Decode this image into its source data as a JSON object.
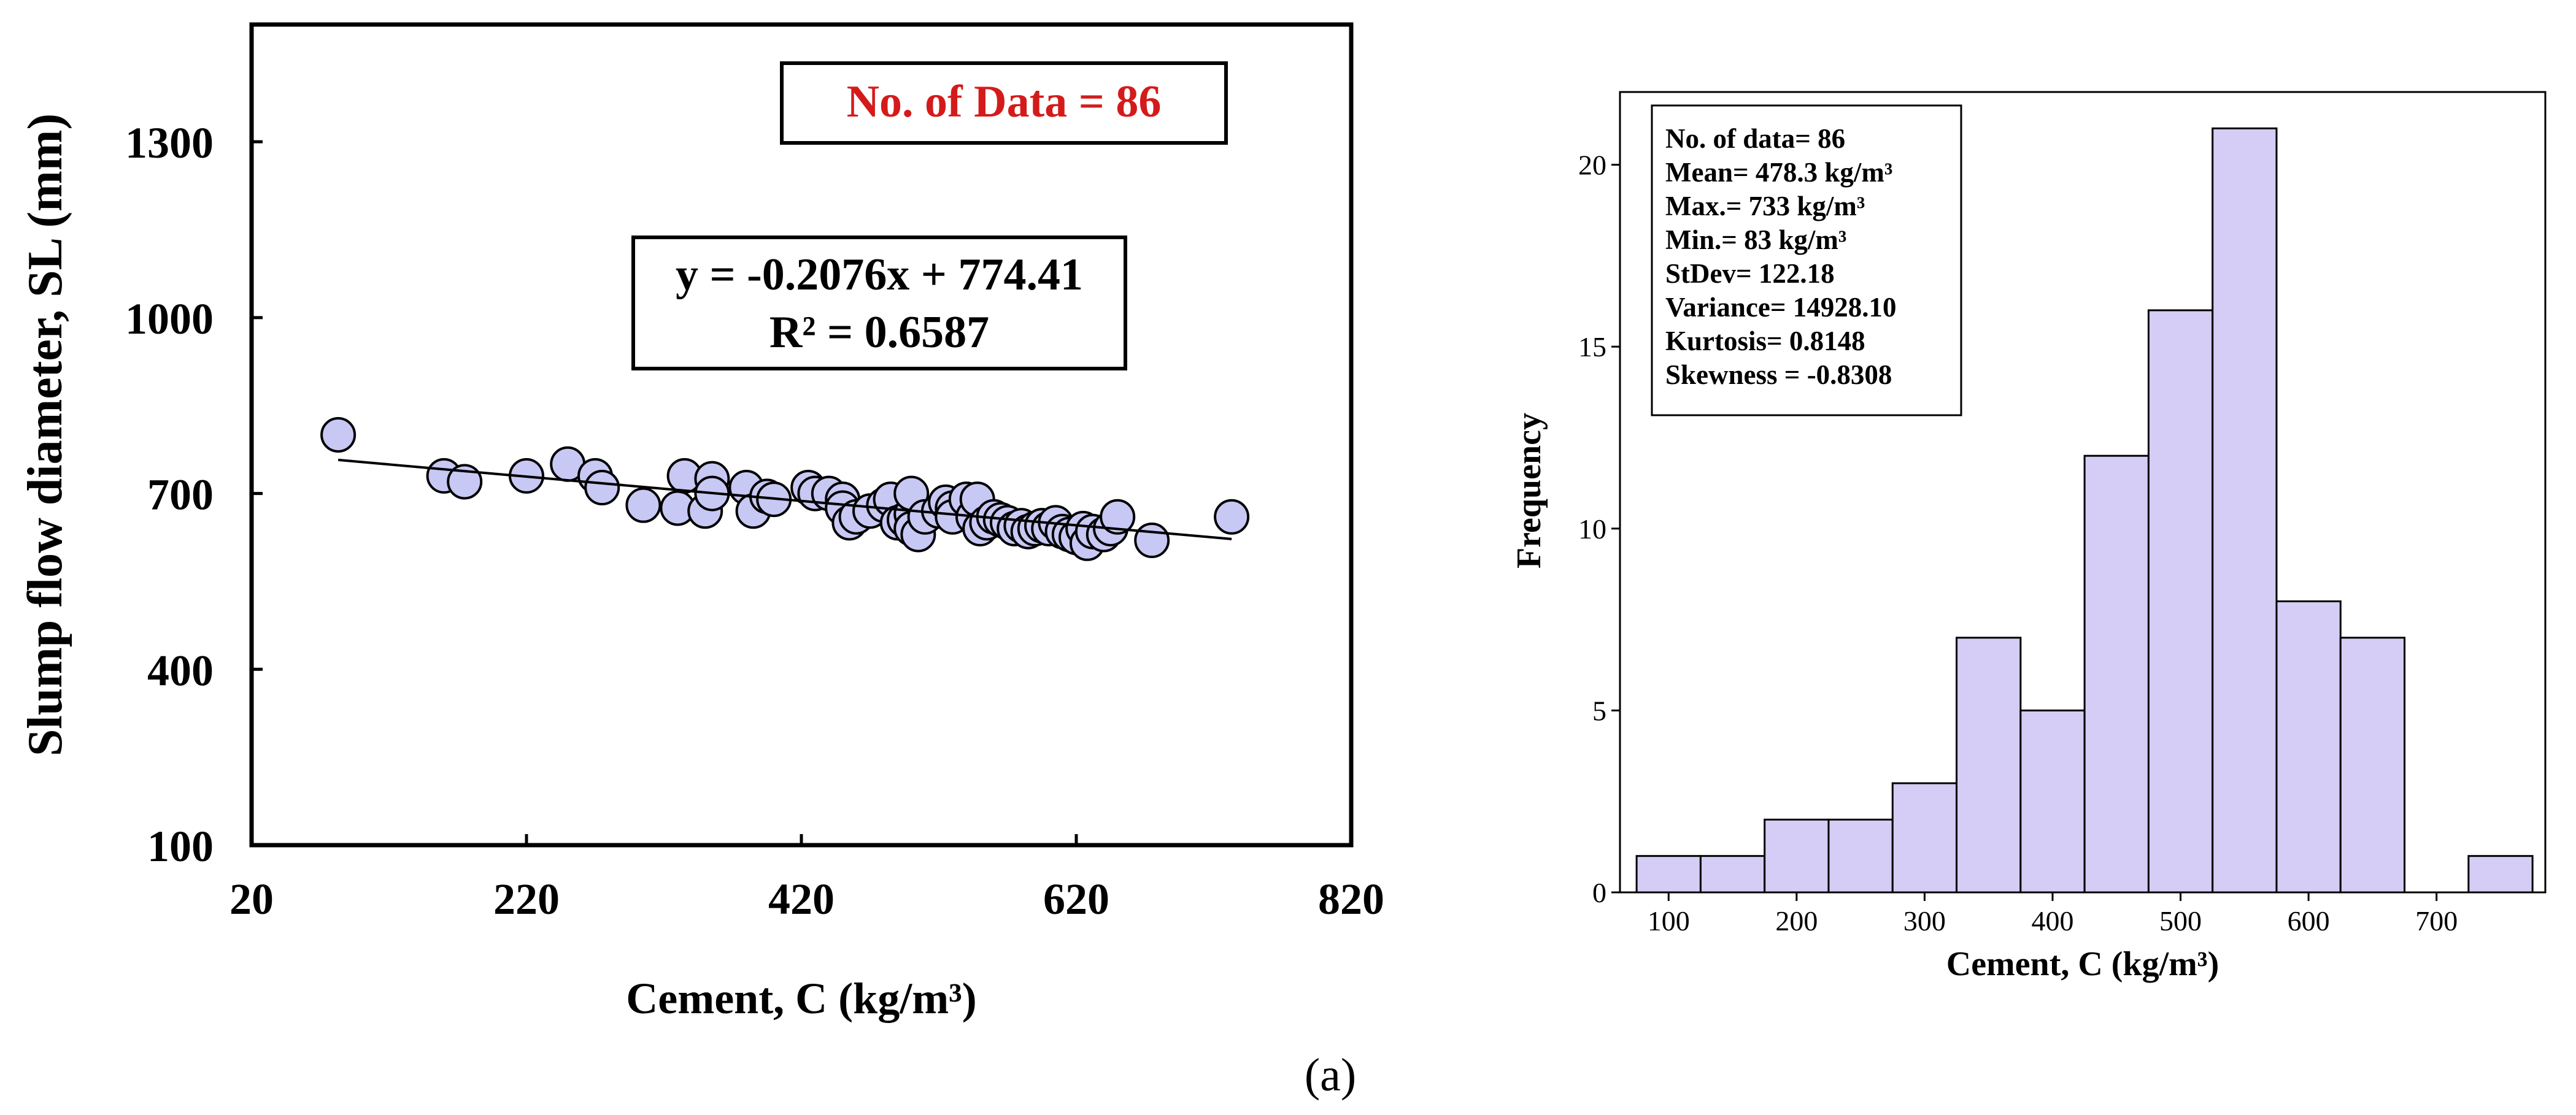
{
  "colors": {
    "marker_fill": "#c8c8f5",
    "bar_fill": "#d5cdf5",
    "annotation_red": "#d41b1b",
    "ink": "#000000"
  },
  "figure_label": "(a)",
  "chart_data": [
    {
      "type": "scatter",
      "title": "",
      "xlabel": "Cement, C (kg/m³)",
      "ylabel": "Slump flow diameter, SL (mm)",
      "xlim": [
        20,
        820
      ],
      "ylim": [
        100,
        1500
      ],
      "xticks": [
        20,
        220,
        420,
        620,
        820
      ],
      "xtick_labels": [
        "20",
        "220",
        "420",
        "620",
        "820"
      ],
      "yticks": [
        100,
        400,
        700,
        1000,
        1300
      ],
      "ytick_labels": [
        "100",
        "400",
        "700",
        "1000",
        "1300"
      ],
      "grid": false,
      "badge": "No. of Data = 86",
      "equation": "y = -0.2076x + 774.41",
      "r_squared": "R² = 0.6587",
      "trendline": {
        "slope": -0.2076,
        "intercept": 774.41,
        "x_range": [
          83,
          733
        ]
      },
      "points": [
        [
          83,
          800
        ],
        [
          160,
          730
        ],
        [
          175,
          720
        ],
        [
          220,
          730
        ],
        [
          250,
          750
        ],
        [
          270,
          730
        ],
        [
          275,
          710
        ],
        [
          305,
          680
        ],
        [
          330,
          675
        ],
        [
          335,
          730
        ],
        [
          350,
          670
        ],
        [
          355,
          725
        ],
        [
          355,
          700
        ],
        [
          380,
          710
        ],
        [
          385,
          670
        ],
        [
          395,
          695
        ],
        [
          400,
          690
        ],
        [
          425,
          710
        ],
        [
          430,
          700
        ],
        [
          440,
          700
        ],
        [
          450,
          690
        ],
        [
          450,
          675
        ],
        [
          455,
          650
        ],
        [
          460,
          660
        ],
        [
          470,
          670
        ],
        [
          480,
          680
        ],
        [
          485,
          690
        ],
        [
          490,
          650
        ],
        [
          495,
          655
        ],
        [
          500,
          665
        ],
        [
          500,
          640
        ],
        [
          500,
          700
        ],
        [
          505,
          630
        ],
        [
          510,
          660
        ],
        [
          520,
          670
        ],
        [
          525,
          685
        ],
        [
          530,
          675
        ],
        [
          530,
          660
        ],
        [
          540,
          690
        ],
        [
          545,
          660
        ],
        [
          548,
          690
        ],
        [
          550,
          640
        ],
        [
          555,
          650
        ],
        [
          560,
          660
        ],
        [
          565,
          655
        ],
        [
          570,
          650
        ],
        [
          575,
          640
        ],
        [
          580,
          645
        ],
        [
          585,
          635
        ],
        [
          590,
          640
        ],
        [
          595,
          645
        ],
        [
          600,
          640
        ],
        [
          605,
          650
        ],
        [
          610,
          635
        ],
        [
          615,
          630
        ],
        [
          620,
          625
        ],
        [
          625,
          640
        ],
        [
          628,
          615
        ],
        [
          632,
          635
        ],
        [
          640,
          630
        ],
        [
          645,
          640
        ],
        [
          650,
          660
        ],
        [
          675,
          620
        ],
        [
          733,
          660
        ]
      ]
    },
    {
      "type": "bar",
      "subtype": "histogram",
      "title": "",
      "xlabel": "Cement, C (kg/m³)",
      "ylabel": "Frequency",
      "bin_width": 50,
      "bins": [
        [
          75,
          125
        ],
        [
          125,
          175
        ],
        [
          175,
          225
        ],
        [
          225,
          275
        ],
        [
          275,
          325
        ],
        [
          325,
          375
        ],
        [
          375,
          425
        ],
        [
          425,
          475
        ],
        [
          475,
          525
        ],
        [
          525,
          575
        ],
        [
          575,
          625
        ],
        [
          625,
          675
        ],
        [
          675,
          725
        ],
        [
          725,
          775
        ]
      ],
      "values": [
        1,
        1,
        2,
        2,
        3,
        7,
        5,
        12,
        16,
        21,
        8,
        7,
        0,
        1
      ],
      "xlim": [
        62,
        785
      ],
      "ylim": [
        0,
        22
      ],
      "xticks": [
        100,
        200,
        300,
        400,
        500,
        600,
        700
      ],
      "xtick_labels": [
        "100",
        "200",
        "300",
        "400",
        "500",
        "600",
        "700"
      ],
      "yticks": [
        0,
        5,
        10,
        15,
        20
      ],
      "ytick_labels": [
        "0",
        "5",
        "10",
        "15",
        "20"
      ],
      "legend": "top-left",
      "stats": [
        "No. of data= 86",
        "Mean= 478.3 kg/m³",
        "Max.= 733 kg/m³",
        "Min.= 83 kg/m³",
        "StDev= 122.18",
        "Variance= 14928.10",
        "Kurtosis= 0.8148",
        "Skewness = -0.8308"
      ]
    }
  ]
}
